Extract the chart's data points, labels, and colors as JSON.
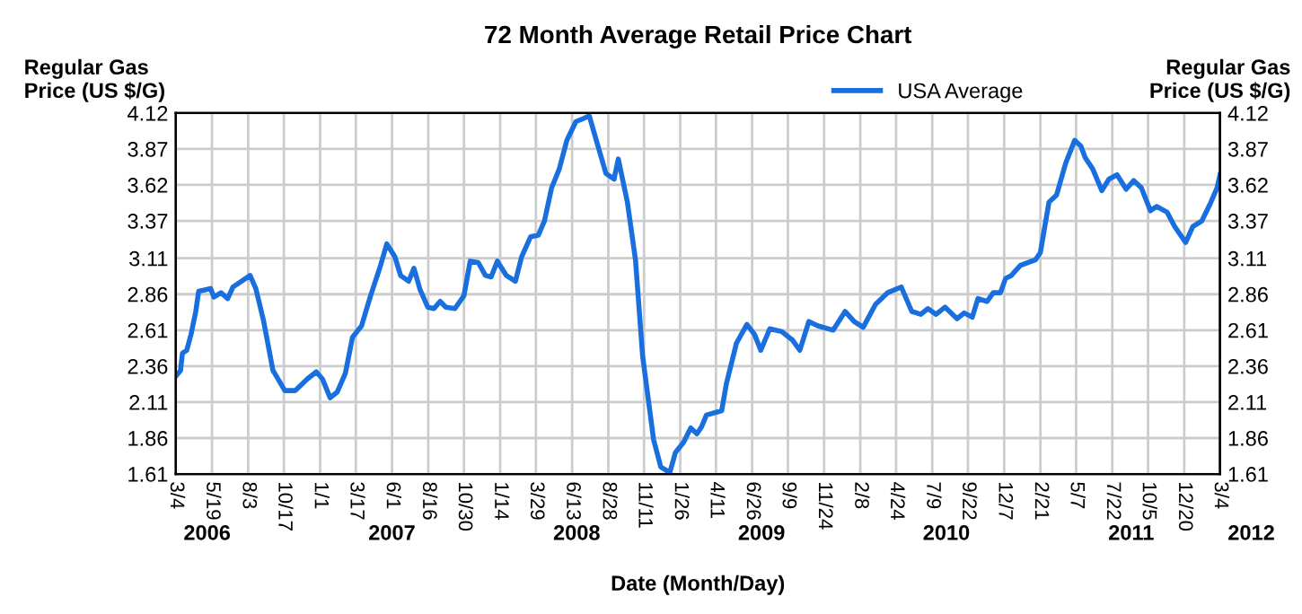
{
  "chart_data": {
    "type": "line",
    "title": "72 Month Average Retail Price Chart",
    "xlabel": "Date (Month/Day)",
    "ylabel": "Regular Gas\nPrice (US $/G)",
    "y2label": "Regular Gas\nPrice (US $/G)",
    "xlim": [
      "2006-03-04",
      "2012-03-04"
    ],
    "xticks": [
      {
        "value": "2006-03-04",
        "label": "3/4"
      },
      {
        "value": "2006-05-19",
        "label": "5/19"
      },
      {
        "value": "2006-08-03",
        "label": "8/3"
      },
      {
        "value": "2006-10-17",
        "label": "10/17"
      },
      {
        "value": "2007-01-01",
        "label": "1/1"
      },
      {
        "value": "2007-03-17",
        "label": "3/17"
      },
      {
        "value": "2007-06-01",
        "label": "6/1"
      },
      {
        "value": "2007-08-16",
        "label": "8/16"
      },
      {
        "value": "2007-10-30",
        "label": "10/30"
      },
      {
        "value": "2008-01-14",
        "label": "1/14"
      },
      {
        "value": "2008-03-29",
        "label": "3/29"
      },
      {
        "value": "2008-06-13",
        "label": "6/13"
      },
      {
        "value": "2008-08-28",
        "label": "8/28"
      },
      {
        "value": "2008-11-11",
        "label": "11/11"
      },
      {
        "value": "2009-01-26",
        "label": "1/26"
      },
      {
        "value": "2009-04-11",
        "label": "4/11"
      },
      {
        "value": "2009-06-26",
        "label": "6/26"
      },
      {
        "value": "2009-09-09",
        "label": "9/9"
      },
      {
        "value": "2009-11-24",
        "label": "11/24"
      },
      {
        "value": "2010-02-08",
        "label": "2/8"
      },
      {
        "value": "2010-04-24",
        "label": "4/24"
      },
      {
        "value": "2010-07-09",
        "label": "7/9"
      },
      {
        "value": "2010-09-22",
        "label": "9/22"
      },
      {
        "value": "2010-12-07",
        "label": "12/7"
      },
      {
        "value": "2011-02-21",
        "label": "2/21"
      },
      {
        "value": "2011-05-07",
        "label": "5/7"
      },
      {
        "value": "2011-07-22",
        "label": "7/22"
      },
      {
        "value": "2011-10-05",
        "label": "10/5"
      },
      {
        "value": "2011-12-20",
        "label": "12/20"
      },
      {
        "value": "2012-03-04",
        "label": "3/4"
      }
    ],
    "ylim": [
      1.61,
      4.12
    ],
    "yticks": [
      1.61,
      1.86,
      2.11,
      2.36,
      2.61,
      2.86,
      3.11,
      3.37,
      3.62,
      3.87,
      4.12
    ],
    "y2lim": [
      1.61,
      4.12
    ],
    "y2ticks": [
      1.61,
      1.86,
      2.11,
      2.36,
      2.61,
      2.86,
      3.11,
      3.37,
      3.62,
      3.87,
      4.12
    ],
    "grid": true,
    "legend": "top right",
    "annotations": [
      "2006",
      "2007",
      "2008",
      "2009",
      "2010",
      "2011",
      "2012"
    ],
    "series": [
      {
        "name": "USA Average",
        "color": "#1a6fdf",
        "x": [
          "2006-03-04",
          "2006-03-14",
          "2006-03-18",
          "2006-03-27",
          "2006-04-05",
          "2006-04-15",
          "2006-04-21",
          "2006-05-04",
          "2006-05-16",
          "2006-05-23",
          "2006-06-07",
          "2006-06-21",
          "2006-07-02",
          "2006-08-07",
          "2006-08-19",
          "2006-09-04",
          "2006-09-24",
          "2006-10-19",
          "2006-11-10",
          "2006-12-05",
          "2006-12-24",
          "2007-01-06",
          "2007-01-22",
          "2007-02-06",
          "2007-02-23",
          "2007-03-10",
          "2007-03-29",
          "2007-04-17",
          "2007-05-06",
          "2007-05-21",
          "2007-06-07",
          "2007-06-19",
          "2007-07-06",
          "2007-07-17",
          "2007-07-30",
          "2007-08-15",
          "2007-08-28",
          "2007-09-10",
          "2007-09-22",
          "2007-10-11",
          "2007-10-30",
          "2007-11-12",
          "2007-11-29",
          "2007-12-14",
          "2007-12-26",
          "2008-01-08",
          "2008-01-27",
          "2008-02-15",
          "2008-02-28",
          "2008-03-18",
          "2008-04-03",
          "2008-04-16",
          "2008-05-01",
          "2008-05-17",
          "2008-06-02",
          "2008-06-21",
          "2008-07-06",
          "2008-07-19",
          "2008-08-01",
          "2008-08-23",
          "2008-09-09",
          "2008-09-18",
          "2008-10-07",
          "2008-10-24",
          "2008-11-08",
          "2008-12-01",
          "2008-12-16",
          "2009-01-04",
          "2009-01-16",
          "2009-02-02",
          "2009-02-17",
          "2009-03-02",
          "2009-03-12",
          "2009-03-22",
          "2009-04-23",
          "2009-05-03",
          "2009-05-24",
          "2009-06-15",
          "2009-07-01",
          "2009-07-14",
          "2009-08-02",
          "2009-08-27",
          "2009-09-19",
          "2009-10-04",
          "2009-10-23",
          "2009-11-11",
          "2009-12-13",
          "2010-01-07",
          "2010-01-26",
          "2010-02-14",
          "2010-03-12",
          "2010-04-06",
          "2010-05-05",
          "2010-05-27",
          "2010-06-15",
          "2010-06-30",
          "2010-07-17",
          "2010-08-05",
          "2010-08-30",
          "2010-09-14",
          "2010-10-01",
          "2010-10-13",
          "2010-11-01",
          "2010-11-14",
          "2010-11-29",
          "2010-12-10",
          "2010-12-22",
          "2011-01-10",
          "2011-02-11",
          "2011-02-21",
          "2011-03-11",
          "2011-03-27",
          "2011-04-15",
          "2011-05-04",
          "2011-05-17",
          "2011-05-26",
          "2011-06-11",
          "2011-06-30",
          "2011-07-15",
          "2011-08-01",
          "2011-08-20",
          "2011-09-05",
          "2011-09-21",
          "2011-10-10",
          "2011-10-23",
          "2011-11-14",
          "2011-11-30",
          "2011-12-23",
          "2012-01-07",
          "2012-01-26",
          "2012-02-14",
          "2012-02-27",
          "2012-03-04"
        ],
        "values": [
          2.29,
          2.33,
          2.45,
          2.47,
          2.58,
          2.74,
          2.88,
          2.89,
          2.9,
          2.84,
          2.87,
          2.83,
          2.91,
          2.99,
          2.9,
          2.68,
          2.33,
          2.19,
          2.19,
          2.27,
          2.32,
          2.27,
          2.14,
          2.18,
          2.31,
          2.56,
          2.64,
          2.85,
          3.04,
          3.21,
          3.12,
          2.99,
          2.95,
          3.04,
          2.89,
          2.77,
          2.76,
          2.81,
          2.77,
          2.76,
          2.85,
          3.09,
          3.08,
          2.99,
          2.98,
          3.09,
          2.99,
          2.95,
          3.12,
          3.26,
          3.27,
          3.37,
          3.6,
          3.73,
          3.93,
          4.06,
          4.08,
          4.1,
          3.95,
          3.7,
          3.66,
          3.8,
          3.5,
          3.1,
          2.43,
          1.85,
          1.66,
          1.62,
          1.76,
          1.83,
          1.93,
          1.89,
          1.94,
          2.02,
          2.05,
          2.24,
          2.52,
          2.65,
          2.58,
          2.47,
          2.62,
          2.6,
          2.54,
          2.47,
          2.67,
          2.64,
          2.61,
          2.74,
          2.67,
          2.63,
          2.79,
          2.87,
          2.91,
          2.74,
          2.72,
          2.76,
          2.72,
          2.77,
          2.69,
          2.73,
          2.7,
          2.83,
          2.81,
          2.87,
          2.87,
          2.97,
          2.99,
          3.06,
          3.1,
          3.15,
          3.5,
          3.55,
          3.77,
          3.93,
          3.89,
          3.81,
          3.73,
          3.58,
          3.66,
          3.69,
          3.59,
          3.65,
          3.6,
          3.44,
          3.47,
          3.43,
          3.33,
          3.22,
          3.33,
          3.37,
          3.5,
          3.6,
          3.69
        ]
      }
    ]
  }
}
